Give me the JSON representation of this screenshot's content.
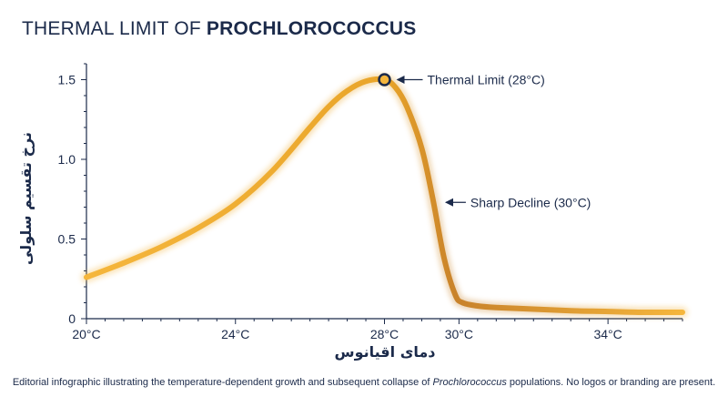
{
  "title": {
    "regular": "THERMAL LIMIT OF ",
    "bold": "PROCHLOROCOCCUS"
  },
  "caption": {
    "before": "Editorial infographic illustrating the temperature-dependent growth and subsequent collapse of ",
    "italic": "Prochlorococcus",
    "after": " populations. No logos or branding are present."
  },
  "colors": {
    "curve_start": "#f5b63c",
    "curve_mid": "#e9a52a",
    "curve_end": "#c8822a",
    "axis": "#1b2a4a",
    "marker_fill": "#f5b63c",
    "marker_stroke": "#1b2a4a"
  },
  "chart_data": {
    "type": "line",
    "xlabel": "دمای اقیانوس",
    "ylabel": "نرخ تقسیم سلولی",
    "xlim": [
      20,
      36
    ],
    "ylim": [
      0,
      1.6
    ],
    "x_ticks": [
      {
        "value": 20,
        "label": "20°C"
      },
      {
        "value": 24,
        "label": "24°C"
      },
      {
        "value": 28,
        "label": "28°C"
      },
      {
        "value": 30,
        "label": "30°C"
      },
      {
        "value": 34,
        "label": "34°C"
      }
    ],
    "y_ticks": [
      {
        "value": 0,
        "label": "0"
      },
      {
        "value": 0.5,
        "label": "0.5"
      },
      {
        "value": 1.0,
        "label": "1.0"
      },
      {
        "value": 1.5,
        "label": "1.5"
      }
    ],
    "grid": false,
    "series": [
      {
        "x": [
          20,
          21,
          22,
          23,
          24,
          25,
          26,
          26.5,
          27,
          27.5,
          28,
          28.3,
          28.6,
          29,
          29.3,
          29.6,
          29.9,
          30.1,
          30.5,
          31,
          32,
          33,
          34,
          35,
          36
        ],
        "y": [
          0.26,
          0.35,
          0.45,
          0.57,
          0.72,
          0.93,
          1.2,
          1.33,
          1.43,
          1.49,
          1.5,
          1.45,
          1.33,
          1.07,
          0.75,
          0.38,
          0.15,
          0.1,
          0.08,
          0.07,
          0.06,
          0.05,
          0.045,
          0.04,
          0.04
        ]
      }
    ],
    "annotations": [
      {
        "name": "thermal-limit",
        "text": "Thermal Limit (28°C)",
        "x": 28,
        "y": 1.5,
        "marker": true
      },
      {
        "name": "sharp-decline",
        "text": "Sharp Decline (30°C)",
        "x": 29.5,
        "y": 0.73,
        "marker": false
      }
    ]
  }
}
